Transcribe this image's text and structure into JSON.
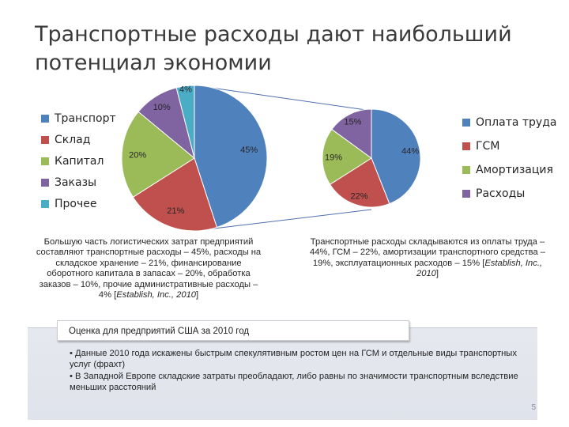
{
  "title": {
    "line1": "Транспортные расходы дают наибольший",
    "line2": "потенциал экономии"
  },
  "colors": {
    "blue": "#4f81bd",
    "red": "#c0504d",
    "green": "#9bbb59",
    "purple": "#8064a2",
    "cyan": "#4bacc6"
  },
  "chart_data": [
    {
      "type": "pie",
      "categories": [
        "Транспорт",
        "Склад",
        "Капитал",
        "Заказы",
        "Прочее"
      ],
      "values": [
        45,
        21,
        20,
        10,
        4
      ],
      "labels": [
        "45%",
        "21%",
        "20%",
        "10%",
        "4%"
      ],
      "colors": [
        "#4f81bd",
        "#c0504d",
        "#9bbb59",
        "#8064a2",
        "#4bacc6"
      ],
      "legend": "left"
    },
    {
      "type": "pie",
      "categories": [
        "Оплата труда",
        "ГСМ",
        "Амортизация",
        "Расходы"
      ],
      "values": [
        44,
        22,
        19,
        15
      ],
      "labels": [
        "44%",
        "22%",
        "19%",
        "15%"
      ],
      "colors": [
        "#4f81bd",
        "#c0504d",
        "#9bbb59",
        "#8064a2"
      ],
      "legend": "right"
    }
  ],
  "captions": {
    "left_text": "Большую часть логистических затрат предприятий составляют транспортные расходы – 45%, расходы на складское хранение – 21%, финансирование оборотного капитала в запасах – 20%, обработка заказов – 10%, прочие административные расходы – 4% [",
    "left_cite": "Establish, Inc., 2010",
    "left_end": "]",
    "right_text": "Транспортные расходы складываются из оплаты труда – 44%, ГСМ – 22%, амортизации транспортного средства – 19%, эксплуатационных расходов – 15% [",
    "right_cite": "Establish, Inc., 2010",
    "right_end": "]"
  },
  "box": {
    "heading": "Оценка для предприятий США за 2010 год",
    "bullet1": "• Данные 2010 года искажены быстрым спекулятивным ростом цен на ГСМ и отдельные виды транспортных услуг (фрахт)",
    "bullet2": "• В Западной Европе складские затраты преобладают, либо равны по значимости транспортным вследствие меньших расстояний"
  },
  "page_number": "5"
}
